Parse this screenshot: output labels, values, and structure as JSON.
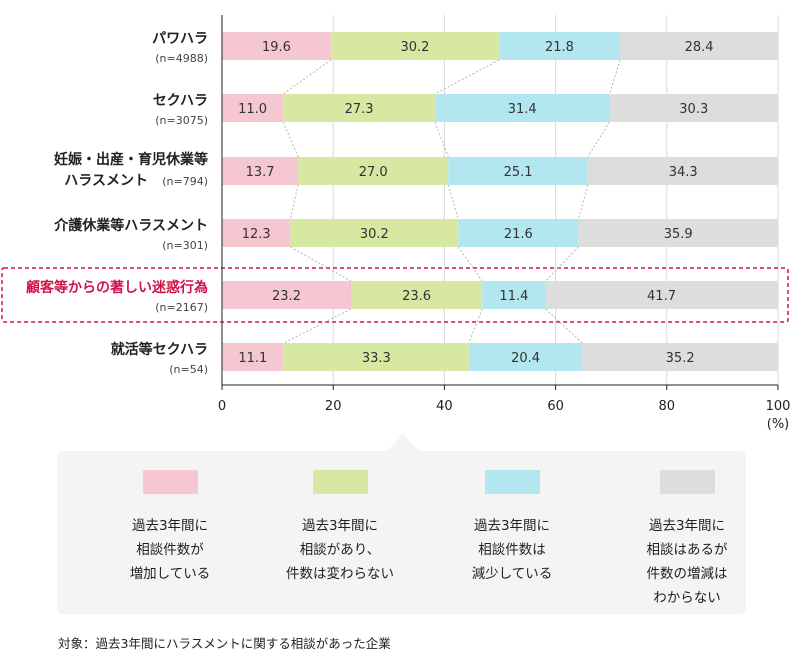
{
  "chart_data": {
    "type": "bar",
    "orientation": "horizontal",
    "stacked": true,
    "categories": [
      {
        "label_lines": [
          "パワハラ"
        ],
        "n": "(n=4988)",
        "highlight": false
      },
      {
        "label_lines": [
          "セクハラ"
        ],
        "n": "(n=3075)",
        "highlight": false
      },
      {
        "label_lines": [
          "妊娠・出産・育児休業等",
          "ハラスメント"
        ],
        "n": "(n=794)",
        "highlight": false
      },
      {
        "label_lines": [
          "介護休業等ハラスメント"
        ],
        "n": "(n=301)",
        "highlight": false
      },
      {
        "label_lines": [
          "顧客等からの著しい迷惑行為"
        ],
        "n": "(n=2167)",
        "highlight": true
      },
      {
        "label_lines": [
          "就活等セクハラ"
        ],
        "n": "(n=54)",
        "highlight": false
      }
    ],
    "series": [
      {
        "name": "過去3年間に相談件数が増加している",
        "color": "#f4c7d1",
        "values": [
          19.6,
          11.0,
          13.7,
          12.3,
          23.2,
          11.1
        ],
        "labels": [
          "19.6",
          "11.0",
          "13.7",
          "12.3",
          "23.2",
          "11.1"
        ]
      },
      {
        "name": "過去3年間に相談があり、件数は変わらない",
        "color": "#d6e8a1",
        "values": [
          30.2,
          27.3,
          27.0,
          30.2,
          23.6,
          33.3
        ],
        "labels": [
          "30.2",
          "27.3",
          "27.0",
          "30.2",
          "23.6",
          "33.3"
        ]
      },
      {
        "name": "過去3年間に相談件数は減少している",
        "color": "#b3e7f0",
        "values": [
          21.8,
          31.4,
          25.1,
          21.6,
          11.4,
          20.4
        ],
        "labels": [
          "21.8",
          "31.4",
          "25.1",
          "21.6",
          "11.4",
          "20.4"
        ]
      },
      {
        "name": "過去3年間に相談はあるが件数の増減はわからない",
        "color": "#dddddd",
        "values": [
          28.4,
          30.3,
          34.3,
          35.9,
          41.7,
          35.2
        ],
        "labels": [
          "28.4",
          "30.3",
          "34.3",
          "35.9",
          "41.7",
          "35.2"
        ]
      }
    ],
    "xlim": [
      0,
      100
    ],
    "xticks": [
      "0",
      "20",
      "40",
      "60",
      "80",
      "100"
    ],
    "xunit": "(%)",
    "legend": [
      {
        "text": "過去3年間に\n相談件数が\n増加している",
        "color": "#f4c7d1"
      },
      {
        "text": "過去3年間に\n相談があり、\n件数は変わらない",
        "color": "#d6e8a1"
      },
      {
        "text": "過去3年間に\n相談件数は\n減少している",
        "color": "#b3e7f0"
      },
      {
        "text": "過去3年間に\n相談はあるが\n件数の増減は\nわからない",
        "color": "#dddddd"
      }
    ],
    "footnote": "対象：過去3年間にハラスメントに関する相談があった企業",
    "highlight_color": "#d0144a"
  }
}
